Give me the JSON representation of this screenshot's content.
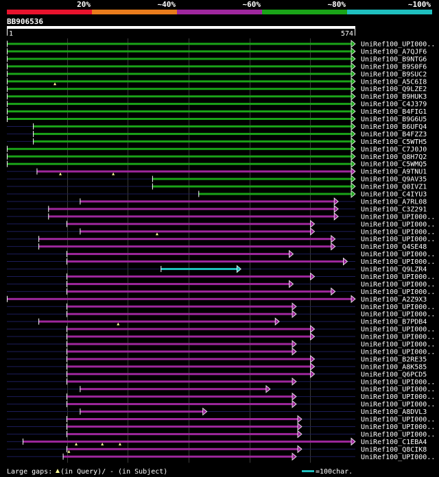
{
  "chart_data": {
    "type": "alignment",
    "query_name": "BB906536",
    "query_start": "1",
    "query_end": "574",
    "query_length": 574,
    "score_legend": [
      {
        "label": "20%",
        "color": "#e8132d"
      },
      {
        "label": "~40%",
        "color": "#e87b1c"
      },
      {
        "label": "~60%",
        "color": "#9e279d"
      },
      {
        "label": "~80%",
        "color": "#1aa318"
      },
      {
        "label": "~100%",
        "color": "#1fbfbf"
      }
    ],
    "hits": [
      {
        "name": "UniRef100_UPI000..",
        "start": 1,
        "end": 574,
        "color": "#1aa318",
        "query_gaps": []
      },
      {
        "name": "UniRef100_A7QJF6",
        "start": 1,
        "end": 574,
        "color": "#1aa318",
        "query_gaps": []
      },
      {
        "name": "UniRef100_B9NTG6",
        "start": 1,
        "end": 574,
        "color": "#1aa318",
        "query_gaps": []
      },
      {
        "name": "UniRef100_B9S0F6",
        "start": 1,
        "end": 574,
        "color": "#1aa318",
        "query_gaps": []
      },
      {
        "name": "UniRef100_B9SUC2",
        "start": 1,
        "end": 574,
        "color": "#1aa318",
        "query_gaps": []
      },
      {
        "name": "UniRef100_A5C6I8",
        "start": 1,
        "end": 574,
        "color": "#1aa318",
        "query_gaps": [
          80
        ]
      },
      {
        "name": "UniRef100_Q9LZE2",
        "start": 1,
        "end": 574,
        "color": "#1aa318",
        "query_gaps": []
      },
      {
        "name": "UniRef100_B9HUK3",
        "start": 1,
        "end": 574,
        "color": "#1aa318",
        "query_gaps": []
      },
      {
        "name": "UniRef100_C4J379",
        "start": 1,
        "end": 574,
        "color": "#1aa318",
        "query_gaps": []
      },
      {
        "name": "UniRef100_B4FIG1",
        "start": 1,
        "end": 574,
        "color": "#1aa318",
        "query_gaps": []
      },
      {
        "name": "UniRef100_B9G6U5",
        "start": 1,
        "end": 574,
        "color": "#1aa318",
        "query_gaps": []
      },
      {
        "name": "UniRef100_B6UFQ4",
        "start": 44,
        "end": 574,
        "color": "#1aa318",
        "query_gaps": []
      },
      {
        "name": "UniRef100_B4FZZ3",
        "start": 44,
        "end": 574,
        "color": "#1aa318",
        "query_gaps": []
      },
      {
        "name": "UniRef100_C5WTH5",
        "start": 44,
        "end": 574,
        "color": "#1aa318",
        "query_gaps": []
      },
      {
        "name": "UniRef100_C7J0J0",
        "start": 1,
        "end": 574,
        "color": "#1aa318",
        "query_gaps": []
      },
      {
        "name": "UniRef100_Q8H7Q2",
        "start": 1,
        "end": 574,
        "color": "#1aa318",
        "query_gaps": []
      },
      {
        "name": "UniRef100_C5WMQ5",
        "start": 1,
        "end": 574,
        "color": "#1aa318",
        "query_gaps": []
      },
      {
        "name": "UniRef100_A9TNU1",
        "start": 50,
        "end": 574,
        "color": "#9e279d",
        "query_gaps": [
          89,
          176
        ]
      },
      {
        "name": "UniRef100_Q9AV35",
        "start": 240,
        "end": 574,
        "color": "#1aa318",
        "query_gaps": []
      },
      {
        "name": "UniRef100_Q0IVZ1",
        "start": 240,
        "end": 574,
        "color": "#1aa318",
        "query_gaps": []
      },
      {
        "name": "UniRef100_C4IYU3",
        "start": 316,
        "end": 574,
        "color": "#1aa318",
        "query_gaps": []
      },
      {
        "name": "UniRef100_A7RL08",
        "start": 121,
        "end": 546,
        "color": "#9e279d",
        "query_gaps": []
      },
      {
        "name": "UniRef100_C3Z291",
        "start": 69,
        "end": 546,
        "color": "#9e279d",
        "query_gaps": []
      },
      {
        "name": "UniRef100_UPI000..",
        "start": 69,
        "end": 546,
        "color": "#9e279d",
        "query_gaps": []
      },
      {
        "name": "UniRef100_UPI000..",
        "start": 99,
        "end": 507,
        "color": "#9e279d",
        "query_gaps": []
      },
      {
        "name": "UniRef100_UPI000..",
        "start": 121,
        "end": 507,
        "color": "#9e279d",
        "query_gaps": [
          248
        ]
      },
      {
        "name": "UniRef100_UPI000..",
        "start": 53,
        "end": 541,
        "color": "#9e279d",
        "query_gaps": []
      },
      {
        "name": "UniRef100_Q4SE48",
        "start": 53,
        "end": 541,
        "color": "#9e279d",
        "query_gaps": []
      },
      {
        "name": "UniRef100_UPI000..",
        "start": 99,
        "end": 472,
        "color": "#9e279d",
        "query_gaps": []
      },
      {
        "name": "UniRef100_UPI000..",
        "start": 99,
        "end": 561,
        "color": "#9e279d",
        "query_gaps": []
      },
      {
        "name": "UniRef100_Q9LZR4",
        "start": 254,
        "end": 386,
        "color": "#1fbfbf",
        "query_gaps": []
      },
      {
        "name": "UniRef100_UPI000..",
        "start": 99,
        "end": 507,
        "color": "#9e279d",
        "query_gaps": []
      },
      {
        "name": "UniRef100_UPI000..",
        "start": 99,
        "end": 472,
        "color": "#9e279d",
        "query_gaps": []
      },
      {
        "name": "UniRef100_UPI000..",
        "start": 99,
        "end": 541,
        "color": "#9e279d",
        "query_gaps": []
      },
      {
        "name": "UniRef100_A2Z9X3",
        "start": 1,
        "end": 574,
        "color": "#9e279d",
        "query_gaps": []
      },
      {
        "name": "UniRef100_UPI000..",
        "start": 99,
        "end": 477,
        "color": "#9e279d",
        "query_gaps": []
      },
      {
        "name": "UniRef100_UPI000..",
        "start": 99,
        "end": 477,
        "color": "#9e279d",
        "query_gaps": []
      },
      {
        "name": "UniRef100_B7PDB4",
        "start": 53,
        "end": 449,
        "color": "#9e279d",
        "query_gaps": [
          184
        ]
      },
      {
        "name": "UniRef100_UPI000..",
        "start": 99,
        "end": 507,
        "color": "#9e279d",
        "query_gaps": []
      },
      {
        "name": "UniRef100_UPI000..",
        "start": 99,
        "end": 507,
        "color": "#9e279d",
        "query_gaps": []
      },
      {
        "name": "UniRef100_UPI000..",
        "start": 99,
        "end": 477,
        "color": "#9e279d",
        "query_gaps": []
      },
      {
        "name": "UniRef100_UPI000..",
        "start": 99,
        "end": 477,
        "color": "#9e279d",
        "query_gaps": []
      },
      {
        "name": "UniRef100_B2RE35",
        "start": 99,
        "end": 507,
        "color": "#9e279d",
        "query_gaps": []
      },
      {
        "name": "UniRef100_A8K585",
        "start": 99,
        "end": 507,
        "color": "#9e279d",
        "query_gaps": []
      },
      {
        "name": "UniRef100_Q6PCD5",
        "start": 99,
        "end": 507,
        "color": "#9e279d",
        "query_gaps": []
      },
      {
        "name": "UniRef100_UPI000..",
        "start": 99,
        "end": 477,
        "color": "#9e279d",
        "query_gaps": []
      },
      {
        "name": "UniRef100_UPI000..",
        "start": 121,
        "end": 434,
        "color": "#9e279d",
        "query_gaps": []
      },
      {
        "name": "UniRef100_UPI000..",
        "start": 99,
        "end": 477,
        "color": "#9e279d",
        "query_gaps": []
      },
      {
        "name": "UniRef100_UPI000..",
        "start": 99,
        "end": 477,
        "color": "#9e279d",
        "query_gaps": []
      },
      {
        "name": "UniRef100_A8DVL3",
        "start": 121,
        "end": 330,
        "color": "#9e279d",
        "query_gaps": []
      },
      {
        "name": "UniRef100_UPI000..",
        "start": 99,
        "end": 486,
        "color": "#9e279d",
        "query_gaps": []
      },
      {
        "name": "UniRef100_UPI000..",
        "start": 99,
        "end": 486,
        "color": "#9e279d",
        "query_gaps": []
      },
      {
        "name": "UniRef100_UPI000..",
        "start": 99,
        "end": 486,
        "color": "#9e279d",
        "query_gaps": []
      },
      {
        "name": "UniRef100_C1EBA4",
        "start": 27,
        "end": 574,
        "color": "#9e279d",
        "query_gaps": [
          115,
          158,
          187
        ]
      },
      {
        "name": "UniRef100_Q8CIK8",
        "start": 99,
        "end": 486,
        "color": "#9e279d",
        "query_gaps": [
          103
        ]
      },
      {
        "name": "UniRef100_UPI000..",
        "start": 93,
        "end": 477,
        "color": "#9e279d",
        "query_gaps": []
      }
    ],
    "footer": {
      "gap_label": "Large gaps:",
      "query_text": "(in Query)/",
      "subject_text": "- (in Subject)",
      "scale_text": "=100char."
    }
  }
}
